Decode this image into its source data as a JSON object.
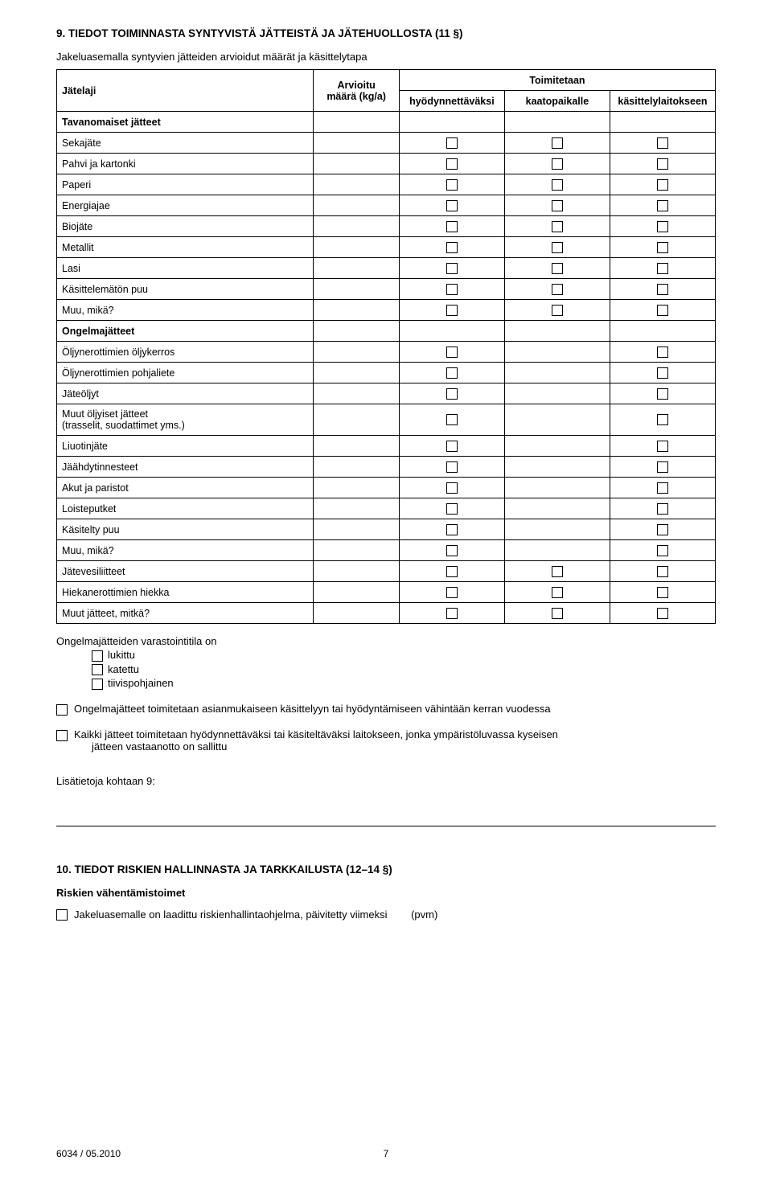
{
  "section9": {
    "heading": "9. TIEDOT TOIMINNASTA SYNTYVISTÄ JÄTTEISTÄ JA JÄTEHUOLLOSTA (11 §)",
    "intro": "Jakeluasemalla syntyvien jätteiden arvioidut määrät ja käsittelytapa",
    "col_labels": {
      "jatelaji": "Jätelaji",
      "arvioitu_l1": "Arvioitu",
      "arvioitu_l2": "määrä (kg/a)",
      "toimitetaan": "Toimitetaan",
      "hyod": "hyödynnettäväksi",
      "kaato": "kaatopaikalle",
      "kasittely": "käsittelylaitokseen"
    },
    "groups": [
      {
        "title": "Tavanomaiset jätteet",
        "cols": [
          true,
          true,
          true
        ],
        "rows": [
          {
            "label": "Sekajäte"
          },
          {
            "label": "Pahvi ja kartonki"
          },
          {
            "label": "Paperi"
          },
          {
            "label": "Energiajae"
          },
          {
            "label": "Biojäte"
          },
          {
            "label": "Metallit"
          },
          {
            "label": "Lasi"
          },
          {
            "label": "Käsittelemätön puu"
          },
          {
            "label": "Muu, mikä?"
          }
        ]
      },
      {
        "title": "Ongelmajätteet",
        "cols": [
          true,
          false,
          true
        ],
        "rows": [
          {
            "label": "Öljynerottimien öljykerros"
          },
          {
            "label": "Öljynerottimien pohjaliete"
          },
          {
            "label": "Jäteöljyt"
          },
          {
            "label": "Muut öljyiset jätteet\n(trasselit, suodattimet yms.)",
            "tall": true
          },
          {
            "label": "Liuotinjäte"
          },
          {
            "label": "Jäähdytinnesteet"
          },
          {
            "label": "Akut ja paristot"
          },
          {
            "label": "Loisteputket"
          },
          {
            "label": "Käsitelty puu"
          },
          {
            "label": "Muu, mikä?"
          }
        ]
      }
    ],
    "tail_rows": [
      {
        "label": "Jätevesiliitteet"
      },
      {
        "label": "Hiekanerottimien hiekka"
      },
      {
        "label": "Muut jätteet, mitkä?"
      }
    ],
    "storage": {
      "lead": "Ongelmajätteiden varastointitila on",
      "opts": [
        "lukittu",
        "katettu",
        "tiivispohjainen"
      ]
    },
    "stmt1": "Ongelmajätteet toimitetaan asianmukaiseen käsittelyyn tai hyödyntämiseen vähintään kerran vuodessa",
    "stmt2a": "Kaikki jätteet toimitetaan hyödynnettäväksi tai käsiteltäväksi laitokseen, jonka ympäristöluvassa kyseisen",
    "stmt2b": "jätteen vastaanotto on sallittu",
    "lisatieto": "Lisätietoja kohtaan 9:"
  },
  "section10": {
    "heading": "10. TIEDOT RISKIEN HALLINNASTA JA TARKKAILUSTA (12–14 §)",
    "sub": "Riskien vähentämistoimet",
    "stmt": "Jakeluasemalle on laadittu riskienhallintaohjelma, päivitetty viimeksi",
    "pvm": "(pvm)"
  },
  "footer": {
    "left": "6034 / 05.2010",
    "page": "7"
  }
}
